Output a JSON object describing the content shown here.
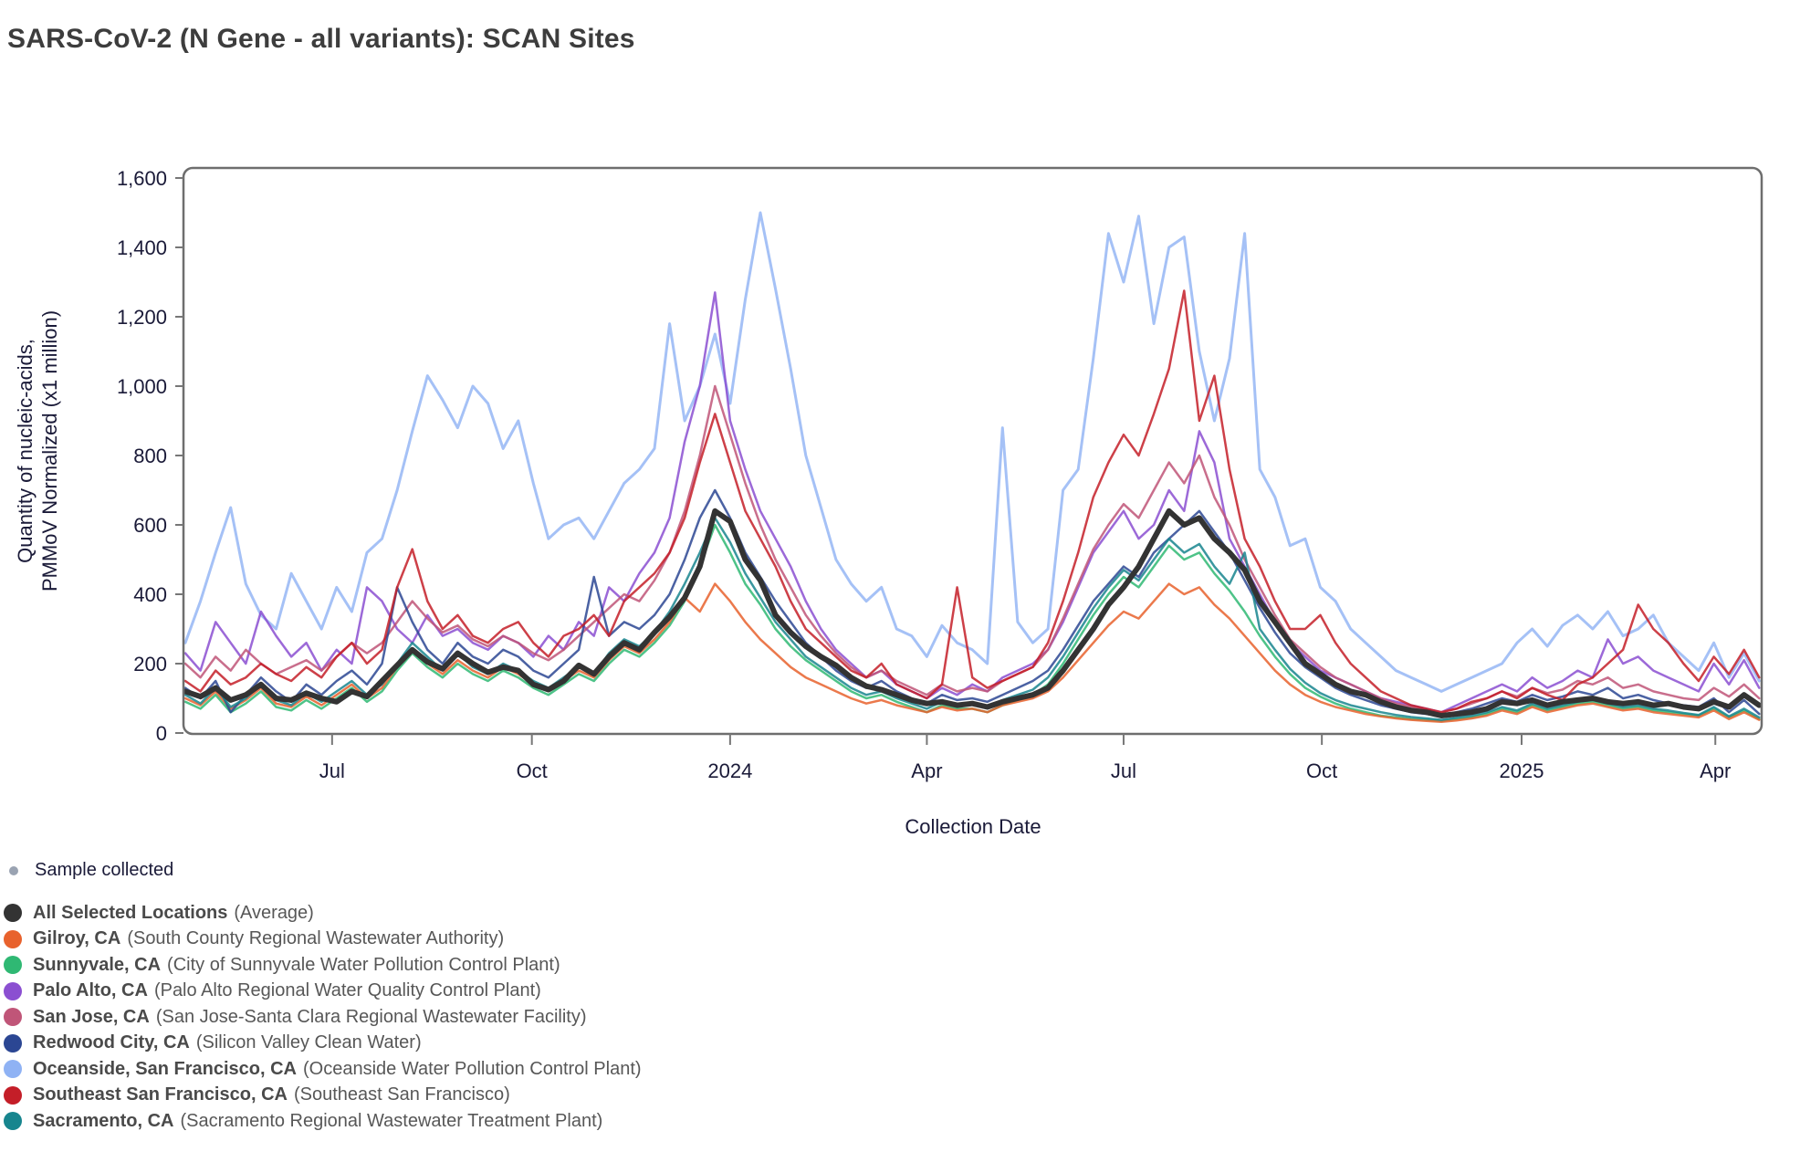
{
  "title": "SARS-CoV-2 (N Gene - all variants): SCAN Sites",
  "axes": {
    "x_label": "Collection Date",
    "y_label_line1": "Quantity of nucleic-acids,",
    "y_label_line2": "PMMoV Normalized (x1 million)"
  },
  "sample_legend": {
    "label": "Sample collected",
    "dot_color": "#9aa3b2"
  },
  "legend": {
    "items": [
      {
        "name": "All Selected Locations",
        "description": "(Average)",
        "color": "#333333"
      },
      {
        "name": "Gilroy, CA",
        "description": "(South County Regional Wastewater Authority)",
        "color": "#e8622d"
      },
      {
        "name": "Sunnyvale, CA",
        "description": "(City of Sunnyvale Water Pollution Control Plant)",
        "color": "#2fb873"
      },
      {
        "name": "Palo Alto, CA",
        "description": "(Palo Alto Regional Water Quality Control Plant)",
        "color": "#8b4fd1"
      },
      {
        "name": "San Jose, CA",
        "description": "(San Jose-Santa Clara Regional Wastewater Facility)",
        "color": "#c05578"
      },
      {
        "name": "Redwood City, CA",
        "description": "(Silicon Valley Clean Water)",
        "color": "#2b4693"
      },
      {
        "name": "Oceanside, San Francisco, CA",
        "description": "(Oceanside Water Pollution Control Plant)",
        "color": "#8fb2f4"
      },
      {
        "name": "Southeast San Francisco, CA",
        "description": "(Southeast San Francisco)",
        "color": "#c41e28"
      },
      {
        "name": "Sacramento, CA",
        "description": "(Sacramento Regional Wastewater Treatment Plant)",
        "color": "#17858e"
      }
    ]
  },
  "chart_data": {
    "type": "line",
    "title": "SARS-CoV-2 (N Gene - all variants): SCAN Sites",
    "xlabel": "Collection Date",
    "ylabel": "Quantity of nucleic-acids, PMMoV Normalized (x1 million)",
    "ylim": [
      0,
      1600
    ],
    "grid": false,
    "legend_position": "bottom-left",
    "x_start": "2023-04-24",
    "x_step_days": 7,
    "n_points": 105,
    "x_ticks": [
      {
        "label": "Jul",
        "week_index": 9.7
      },
      {
        "label": "Oct",
        "week_index": 22.9
      },
      {
        "label": "2024",
        "week_index": 36.0
      },
      {
        "label": "Apr",
        "week_index": 49.0
      },
      {
        "label": "Jul",
        "week_index": 62.0
      },
      {
        "label": "Oct",
        "week_index": 75.1
      },
      {
        "label": "2025",
        "week_index": 88.3
      },
      {
        "label": "Apr",
        "week_index": 101.1
      }
    ],
    "y_ticks": [
      0,
      200,
      400,
      600,
      800,
      1000,
      1200,
      1400,
      1600
    ],
    "y_tick_labels": [
      "0",
      "200",
      "400",
      "600",
      "800",
      "1,000",
      "1,200",
      "1,400",
      "1,600"
    ],
    "draw_order": [
      "oceanside",
      "sunnyvale",
      "gilroy",
      "palo_alto",
      "san_jose",
      "redwood_city",
      "sacramento",
      "southeast_sf",
      "avg"
    ],
    "series": [
      {
        "id": "avg",
        "name": "All Selected Locations (Average)",
        "color": "#333333",
        "line_width": 6,
        "opacity": 1,
        "values": [
          120,
          105,
          130,
          95,
          110,
          140,
          100,
          95,
          115,
          100,
          90,
          120,
          105,
          150,
          195,
          240,
          205,
          185,
          230,
          200,
          175,
          190,
          180,
          140,
          125,
          150,
          195,
          170,
          220,
          260,
          240,
          290,
          335,
          390,
          480,
          640,
          610,
          500,
          440,
          340,
          290,
          250,
          220,
          195,
          160,
          135,
          125,
          110,
          95,
          85,
          90,
          80,
          85,
          75,
          90,
          100,
          110,
          130,
          180,
          240,
          300,
          370,
          420,
          480,
          560,
          640,
          600,
          620,
          560,
          520,
          470,
          380,
          320,
          260,
          200,
          170,
          140,
          120,
          110,
          90,
          75,
          65,
          60,
          50,
          55,
          60,
          70,
          90,
          85,
          95,
          80,
          90,
          95,
          100,
          90,
          85,
          90,
          80,
          85,
          75,
          70,
          90,
          75,
          110,
          80
        ]
      },
      {
        "id": "gilroy",
        "name": "Gilroy, CA",
        "color": "#e8622d",
        "line_width": 2.5,
        "opacity": 0.85,
        "values": [
          100,
          80,
          120,
          70,
          95,
          130,
          85,
          75,
          105,
          80,
          110,
          140,
          100,
          130,
          190,
          240,
          200,
          170,
          210,
          180,
          160,
          190,
          170,
          140,
          120,
          150,
          180,
          160,
          210,
          250,
          230,
          270,
          320,
          390,
          350,
          430,
          380,
          320,
          270,
          230,
          190,
          160,
          140,
          120,
          100,
          85,
          95,
          80,
          70,
          60,
          75,
          65,
          70,
          60,
          80,
          90,
          100,
          120,
          160,
          210,
          260,
          310,
          350,
          330,
          380,
          430,
          400,
          420,
          370,
          330,
          280,
          230,
          180,
          140,
          110,
          90,
          75,
          65,
          55,
          48,
          42,
          38,
          35,
          32,
          36,
          42,
          50,
          65,
          55,
          75,
          60,
          70,
          80,
          85,
          75,
          65,
          70,
          60,
          55,
          50,
          45,
          65,
          40,
          60,
          38
        ]
      },
      {
        "id": "sunnyvale",
        "name": "Sunnyvale, CA",
        "color": "#2fb873",
        "line_width": 2.5,
        "opacity": 0.85,
        "values": [
          90,
          70,
          110,
          60,
          85,
          120,
          75,
          65,
          95,
          70,
          100,
          130,
          90,
          120,
          180,
          230,
          190,
          160,
          200,
          170,
          150,
          180,
          160,
          130,
          110,
          140,
          170,
          150,
          200,
          240,
          220,
          260,
          310,
          380,
          480,
          600,
          520,
          430,
          370,
          300,
          250,
          210,
          180,
          150,
          120,
          100,
          110,
          90,
          75,
          60,
          80,
          70,
          70,
          60,
          80,
          95,
          110,
          140,
          200,
          270,
          340,
          400,
          450,
          420,
          480,
          540,
          500,
          520,
          460,
          410,
          350,
          280,
          220,
          170,
          130,
          105,
          85,
          70,
          60,
          50,
          45,
          40,
          38,
          35,
          40,
          45,
          55,
          70,
          60,
          80,
          65,
          75,
          85,
          90,
          80,
          70,
          75,
          65,
          60,
          55,
          50,
          70,
          45,
          65,
          40
        ]
      },
      {
        "id": "palo_alto",
        "name": "Palo Alto, CA",
        "color": "#8b4fd1",
        "line_width": 2.5,
        "opacity": 0.85,
        "values": [
          230,
          180,
          320,
          260,
          200,
          350,
          280,
          220,
          260,
          180,
          240,
          200,
          420,
          380,
          300,
          260,
          340,
          280,
          300,
          260,
          240,
          280,
          260,
          220,
          280,
          240,
          320,
          280,
          420,
          380,
          460,
          520,
          620,
          840,
          1000,
          1270,
          900,
          760,
          640,
          560,
          480,
          380,
          300,
          240,
          200,
          160,
          180,
          140,
          120,
          100,
          130,
          110,
          140,
          120,
          160,
          180,
          200,
          240,
          320,
          420,
          520,
          580,
          640,
          560,
          600,
          700,
          640,
          870,
          780,
          560,
          480,
          400,
          320,
          260,
          220,
          180,
          160,
          140,
          120,
          100,
          90,
          80,
          70,
          60,
          80,
          100,
          120,
          140,
          120,
          160,
          130,
          150,
          180,
          160,
          270,
          200,
          220,
          180,
          160,
          140,
          120,
          200,
          140,
          210,
          130
        ]
      },
      {
        "id": "san_jose",
        "name": "San Jose, CA",
        "color": "#c05578",
        "line_width": 2.5,
        "opacity": 0.85,
        "values": [
          200,
          160,
          220,
          180,
          240,
          200,
          170,
          190,
          210,
          180,
          220,
          260,
          230,
          260,
          320,
          380,
          330,
          290,
          310,
          270,
          250,
          280,
          260,
          230,
          210,
          240,
          280,
          320,
          360,
          400,
          380,
          440,
          520,
          640,
          800,
          1000,
          860,
          720,
          600,
          500,
          420,
          340,
          280,
          230,
          190,
          160,
          180,
          150,
          130,
          110,
          140,
          120,
          130,
          120,
          150,
          170,
          190,
          240,
          330,
          430,
          530,
          600,
          660,
          620,
          700,
          780,
          720,
          800,
          680,
          600,
          500,
          420,
          340,
          270,
          230,
          190,
          160,
          140,
          120,
          100,
          85,
          75,
          65,
          60,
          70,
          85,
          100,
          120,
          105,
          130,
          115,
          125,
          150,
          140,
          160,
          130,
          140,
          120,
          110,
          100,
          95,
          130,
          105,
          140,
          100
        ]
      },
      {
        "id": "redwood_city",
        "name": "Redwood City, CA",
        "color": "#2b4693",
        "line_width": 2.5,
        "opacity": 0.85,
        "values": [
          130,
          100,
          150,
          60,
          110,
          160,
          120,
          90,
          140,
          110,
          150,
          180,
          140,
          200,
          420,
          320,
          240,
          200,
          260,
          220,
          200,
          240,
          220,
          180,
          160,
          200,
          240,
          450,
          280,
          320,
          300,
          340,
          400,
          500,
          620,
          700,
          620,
          520,
          450,
          380,
          320,
          260,
          220,
          180,
          150,
          130,
          150,
          120,
          100,
          85,
          110,
          95,
          100,
          90,
          110,
          130,
          150,
          180,
          240,
          310,
          380,
          430,
          480,
          450,
          520,
          560,
          600,
          640,
          580,
          520,
          440,
          360,
          290,
          230,
          190,
          160,
          130,
          110,
          95,
          80,
          70,
          60,
          55,
          50,
          60,
          70,
          85,
          100,
          90,
          110,
          95,
          105,
          120,
          110,
          130,
          100,
          110,
          95,
          85,
          80,
          75,
          100,
          60,
          95,
          55
        ]
      },
      {
        "id": "oceanside",
        "name": "Oceanside, San Francisco, CA",
        "color": "#8fb2f4",
        "line_width": 3,
        "opacity": 0.8,
        "values": [
          260,
          380,
          520,
          650,
          430,
          340,
          300,
          460,
          380,
          300,
          420,
          350,
          520,
          560,
          700,
          870,
          1030,
          960,
          880,
          1000,
          950,
          820,
          900,
          720,
          560,
          600,
          620,
          560,
          640,
          720,
          760,
          820,
          1180,
          900,
          1000,
          1150,
          950,
          1250,
          1500,
          1280,
          1050,
          800,
          650,
          500,
          430,
          380,
          420,
          300,
          280,
          220,
          310,
          260,
          240,
          200,
          880,
          320,
          260,
          300,
          700,
          760,
          1080,
          1440,
          1300,
          1490,
          1180,
          1400,
          1430,
          1100,
          900,
          1080,
          1440,
          760,
          680,
          540,
          560,
          420,
          380,
          300,
          260,
          220,
          180,
          160,
          140,
          120,
          140,
          160,
          180,
          200,
          260,
          300,
          250,
          310,
          340,
          300,
          350,
          280,
          300,
          340,
          260,
          220,
          180,
          260,
          160,
          230,
          150
        ]
      },
      {
        "id": "southeast_sf",
        "name": "Southeast San Francisco, CA",
        "color": "#c41e28",
        "line_width": 2.5,
        "opacity": 0.85,
        "values": [
          150,
          120,
          180,
          140,
          160,
          200,
          170,
          150,
          190,
          160,
          220,
          260,
          200,
          240,
          420,
          530,
          380,
          300,
          340,
          280,
          260,
          300,
          320,
          260,
          220,
          280,
          300,
          340,
          280,
          380,
          420,
          460,
          520,
          620,
          780,
          920,
          780,
          640,
          560,
          480,
          380,
          300,
          260,
          220,
          180,
          160,
          200,
          140,
          120,
          100,
          140,
          420,
          160,
          130,
          150,
          170,
          190,
          260,
          380,
          520,
          680,
          780,
          860,
          800,
          920,
          1050,
          1275,
          900,
          1030,
          760,
          560,
          480,
          380,
          300,
          300,
          340,
          260,
          200,
          160,
          120,
          100,
          80,
          70,
          60,
          70,
          90,
          100,
          120,
          100,
          130,
          110,
          95,
          140,
          160,
          200,
          240,
          370,
          300,
          260,
          200,
          150,
          220,
          170,
          240,
          160
        ]
      },
      {
        "id": "sacramento",
        "name": "Sacramento, CA",
        "color": "#17858e",
        "line_width": 2.5,
        "opacity": 0.85,
        "values": [
          110,
          85,
          130,
          75,
          100,
          140,
          95,
          80,
          115,
          90,
          120,
          150,
          110,
          140,
          200,
          260,
          220,
          180,
          230,
          190,
          170,
          200,
          180,
          150,
          130,
          160,
          190,
          170,
          230,
          270,
          250,
          290,
          350,
          430,
          520,
          620,
          550,
          460,
          390,
          320,
          270,
          220,
          190,
          160,
          130,
          110,
          120,
          100,
          85,
          70,
          90,
          80,
          85,
          75,
          95,
          110,
          125,
          160,
          220,
          290,
          360,
          420,
          470,
          440,
          500,
          560,
          520,
          545,
          480,
          430,
          520,
          300,
          240,
          185,
          145,
          115,
          95,
          80,
          70,
          60,
          52,
          46,
          42,
          38,
          44,
          50,
          60,
          75,
          65,
          85,
          70,
          80,
          90,
          95,
          85,
          75,
          80,
          70,
          65,
          58,
          52,
          75,
          48,
          70,
          45
        ]
      }
    ]
  }
}
